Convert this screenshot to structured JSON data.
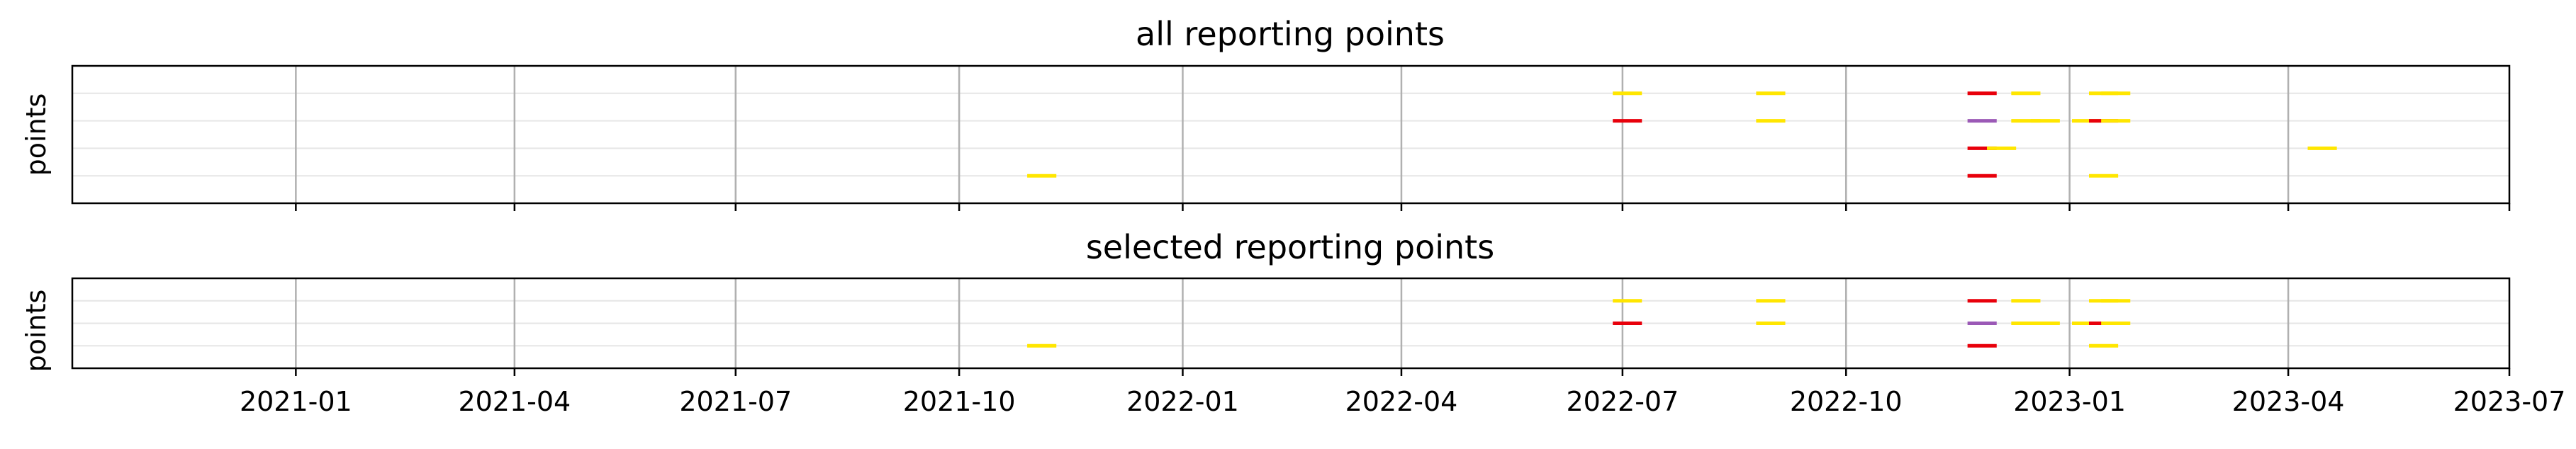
{
  "colors": {
    "red": "#e8000b",
    "yellow": "#ffe600",
    "purple": "#9b59b6"
  },
  "chart_data": [
    {
      "type": "scatter",
      "marker": "horizontal-dash",
      "title": "all reporting points",
      "ylabel": "points",
      "x_axis": "date",
      "xlim": [
        "2020-10-01",
        "2023-07-01"
      ],
      "x_ticks_shown": false,
      "vertical_grid": true,
      "rows": 4,
      "points": [
        {
          "date": "2021-11-04",
          "row": 1,
          "color": "yellow"
        },
        {
          "date": "2022-07-03",
          "row": 4,
          "color": "yellow"
        },
        {
          "date": "2022-07-03",
          "row": 3,
          "color": "red"
        },
        {
          "date": "2022-08-31",
          "row": 4,
          "color": "yellow"
        },
        {
          "date": "2022-08-31",
          "row": 3,
          "color": "yellow"
        },
        {
          "date": "2022-11-26",
          "row": 4,
          "color": "red"
        },
        {
          "date": "2022-11-26",
          "row": 3,
          "color": "purple"
        },
        {
          "date": "2022-11-26",
          "row": 2,
          "color": "red"
        },
        {
          "date": "2022-11-26",
          "row": 1,
          "color": "red"
        },
        {
          "date": "2022-12-04",
          "row": 2,
          "color": "yellow"
        },
        {
          "date": "2022-12-14",
          "row": 4,
          "color": "yellow"
        },
        {
          "date": "2022-12-14",
          "row": 3,
          "color": "yellow"
        },
        {
          "date": "2022-12-22",
          "row": 3,
          "color": "yellow"
        },
        {
          "date": "2023-01-08",
          "row": 3,
          "color": "yellow"
        },
        {
          "date": "2023-01-15",
          "row": 4,
          "color": "yellow"
        },
        {
          "date": "2023-01-15",
          "row": 3,
          "color": "red"
        },
        {
          "date": "2023-01-15",
          "row": 1,
          "color": "yellow"
        },
        {
          "date": "2023-01-20",
          "row": 4,
          "color": "yellow"
        },
        {
          "date": "2023-01-20",
          "row": 3,
          "color": "yellow"
        },
        {
          "date": "2023-04-15",
          "row": 2,
          "color": "yellow"
        }
      ]
    },
    {
      "type": "scatter",
      "marker": "horizontal-dash",
      "title": "selected reporting points",
      "ylabel": "points",
      "x_axis": "date",
      "xlim": [
        "2020-10-01",
        "2023-07-01"
      ],
      "x_ticks_shown": true,
      "x_tick_labels": [
        "2021-01",
        "2021-04",
        "2021-07",
        "2021-10",
        "2022-01",
        "2022-04",
        "2022-07",
        "2022-10",
        "2023-01",
        "2023-04",
        "2023-07"
      ],
      "vertical_grid": true,
      "rows": 3,
      "points": [
        {
          "date": "2021-11-04",
          "row": 1,
          "color": "yellow"
        },
        {
          "date": "2022-07-03",
          "row": 3,
          "color": "yellow"
        },
        {
          "date": "2022-07-03",
          "row": 2,
          "color": "red"
        },
        {
          "date": "2022-08-31",
          "row": 3,
          "color": "yellow"
        },
        {
          "date": "2022-08-31",
          "row": 2,
          "color": "yellow"
        },
        {
          "date": "2022-11-26",
          "row": 3,
          "color": "red"
        },
        {
          "date": "2022-11-26",
          "row": 2,
          "color": "purple"
        },
        {
          "date": "2022-11-26",
          "row": 1,
          "color": "red"
        },
        {
          "date": "2022-12-14",
          "row": 3,
          "color": "yellow"
        },
        {
          "date": "2022-12-14",
          "row": 2,
          "color": "yellow"
        },
        {
          "date": "2022-12-22",
          "row": 2,
          "color": "yellow"
        },
        {
          "date": "2023-01-08",
          "row": 2,
          "color": "yellow"
        },
        {
          "date": "2023-01-15",
          "row": 3,
          "color": "yellow"
        },
        {
          "date": "2023-01-15",
          "row": 2,
          "color": "red"
        },
        {
          "date": "2023-01-15",
          "row": 1,
          "color": "yellow"
        },
        {
          "date": "2023-01-20",
          "row": 3,
          "color": "yellow"
        },
        {
          "date": "2023-01-20",
          "row": 2,
          "color": "yellow"
        }
      ]
    }
  ]
}
